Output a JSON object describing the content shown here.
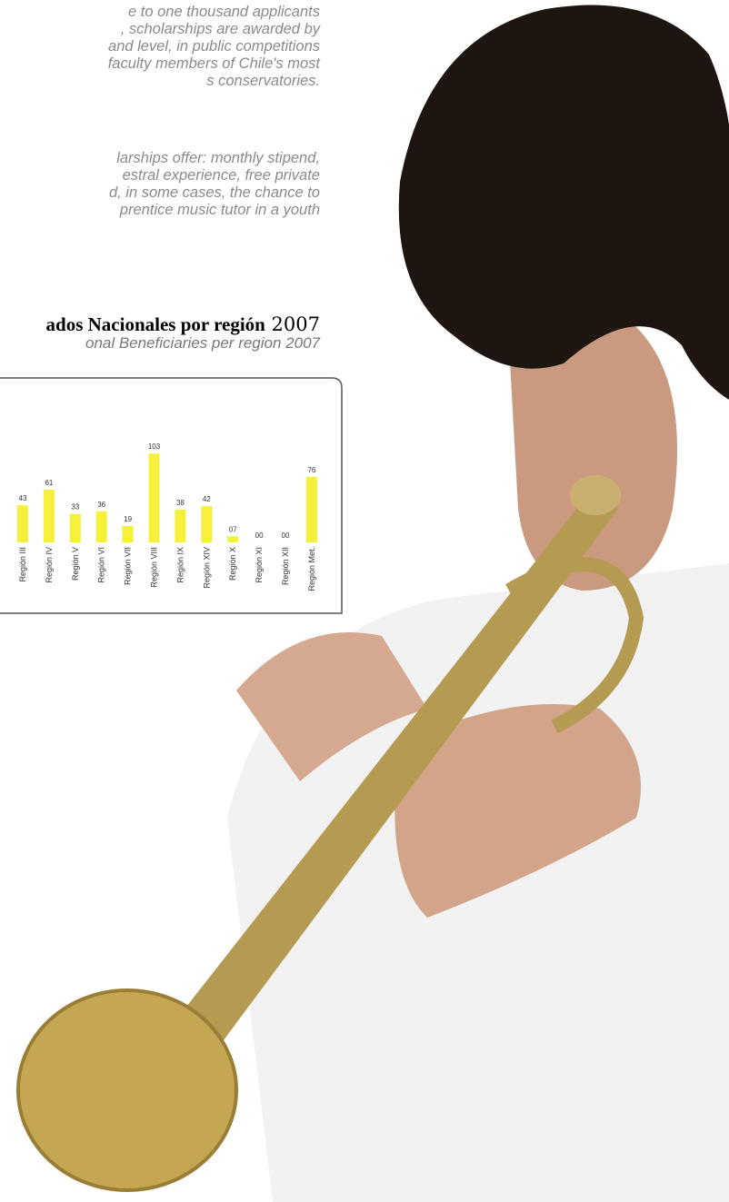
{
  "paragraphs": [
    [
      "e to one thousand applicants",
      ", scholarships are awarded by",
      "and level, in public competitions",
      "faculty members of Chile's most",
      "s conservatories."
    ],
    [
      "larships offer: monthly stipend,",
      "estral experience, free private",
      "d, in some cases, the chance to",
      "prentice music tutor in a youth"
    ]
  ],
  "chart": {
    "type": "bar",
    "title": "ados Nacionales por región",
    "title_year": "2007",
    "subtitle": "onal Beneficiaries per region 2007",
    "categories": [
      "Región III",
      "Región IV",
      "Región V",
      "Región VI",
      "Región VII",
      "Región VIII",
      "Región IX",
      "Región XIV",
      "Región X",
      "Región XI",
      "Región XII",
      "Región Met."
    ],
    "values": [
      43,
      61,
      33,
      36,
      19,
      103,
      38,
      42,
      7,
      0,
      0,
      76
    ],
    "value_labels": [
      "43",
      "61",
      "33",
      "36",
      "19",
      "103",
      "38",
      "42",
      "07",
      "00",
      "00",
      "76"
    ],
    "color": "#f5f03a"
  }
}
